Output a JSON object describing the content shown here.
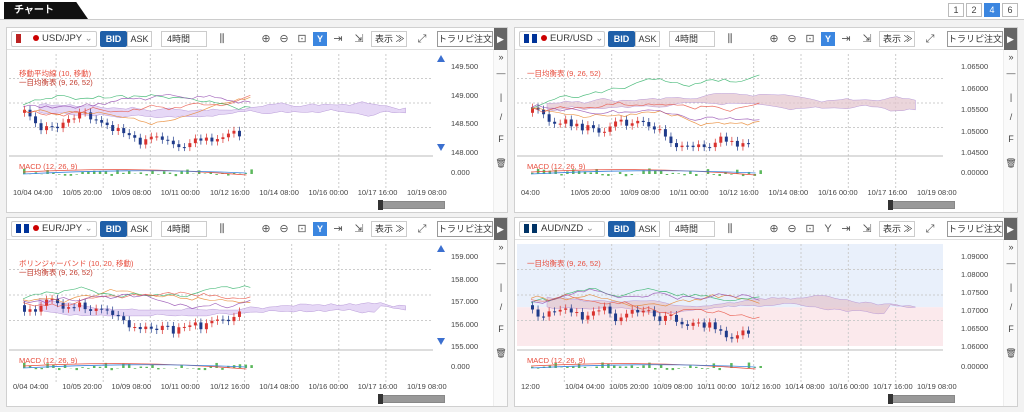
{
  "header": {
    "title": "チャート",
    "layout_buttons": [
      "1",
      "2",
      "4",
      "6"
    ],
    "active_layout": "4"
  },
  "toolbar": {
    "bid": "BID",
    "ask": "ASK",
    "timeframe": "4時間",
    "display": "表示",
    "trade": "トラリピ注文"
  },
  "colors": {
    "accent": "#3b86e0",
    "bid": "#1f5fa8",
    "up": "#c0392b",
    "down": "#1f3b8a",
    "cloud": "#d9c6f0",
    "cloud_red": "#e8c2c8"
  },
  "panels": [
    {
      "pair": "USD/JPY",
      "prices": [
        "149.500",
        "149.000",
        "148.500",
        "148.000"
      ],
      "macd_value": "0.000",
      "indicators": [
        "移動平均線 (10, 移動)",
        "一目均衡表 (9, 26, 52)"
      ],
      "macd_label": "MACD (12, 26, 9)",
      "times": [
        "10/04 04:00",
        "10/05 20:00",
        "10/09 08:00",
        "10/11 00:00",
        "10/12 16:00",
        "10/14 08:00",
        "10/16 00:00",
        "10/17 16:00",
        "10/19 08:00"
      ]
    },
    {
      "pair": "EUR/USD",
      "prices": [
        "1.06500",
        "1.06000",
        "1.05500",
        "1.05000",
        "1.04500"
      ],
      "macd_value": "0.00000",
      "indicators": [
        "一目均衡表 (9, 26, 52)"
      ],
      "macd_label": "MACD (12, 26, 9)",
      "times": [
        "04:00",
        "10/05 20:00",
        "10/09 08:00",
        "10/11 00:00",
        "10/12 16:00",
        "10/14 08:00",
        "10/16 00:00",
        "10/17 16:00",
        "10/19 08:00"
      ]
    },
    {
      "pair": "EUR/JPY",
      "prices": [
        "159.000",
        "158.000",
        "157.000",
        "156.000",
        "155.000"
      ],
      "macd_value": "0.000",
      "indicators": [
        "ボリンジャーバンド (10, 20, 移動)",
        "一目均衡表 (9, 26, 52)"
      ],
      "macd_label": "MACD (12, 26, 9)",
      "times": [
        "0/04 04:00",
        "10/05 20:00",
        "10/09 08:00",
        "10/11 00:00",
        "10/12 16:00",
        "10/14 08:00",
        "10/16 00:00",
        "10/17 16:00",
        "10/19 08:00"
      ]
    },
    {
      "pair": "AUD/NZD",
      "prices": [
        "1.09000",
        "1.08000",
        "1.07500",
        "1.07000",
        "1.06500",
        "1.06000"
      ],
      "macd_value": "0.00000",
      "indicators": [
        "一目均衡表 (9, 26, 52)"
      ],
      "macd_label": "MACD (12, 26, 9)",
      "times": [
        "12:00",
        "10/04 04:00",
        "10/05 20:00",
        "10/09 08:00",
        "10/11 00:00",
        "10/12 16:00",
        "10/14 08:00",
        "10/16 00:00",
        "10/17 16:00",
        "10/19 08:00"
      ]
    }
  ]
}
